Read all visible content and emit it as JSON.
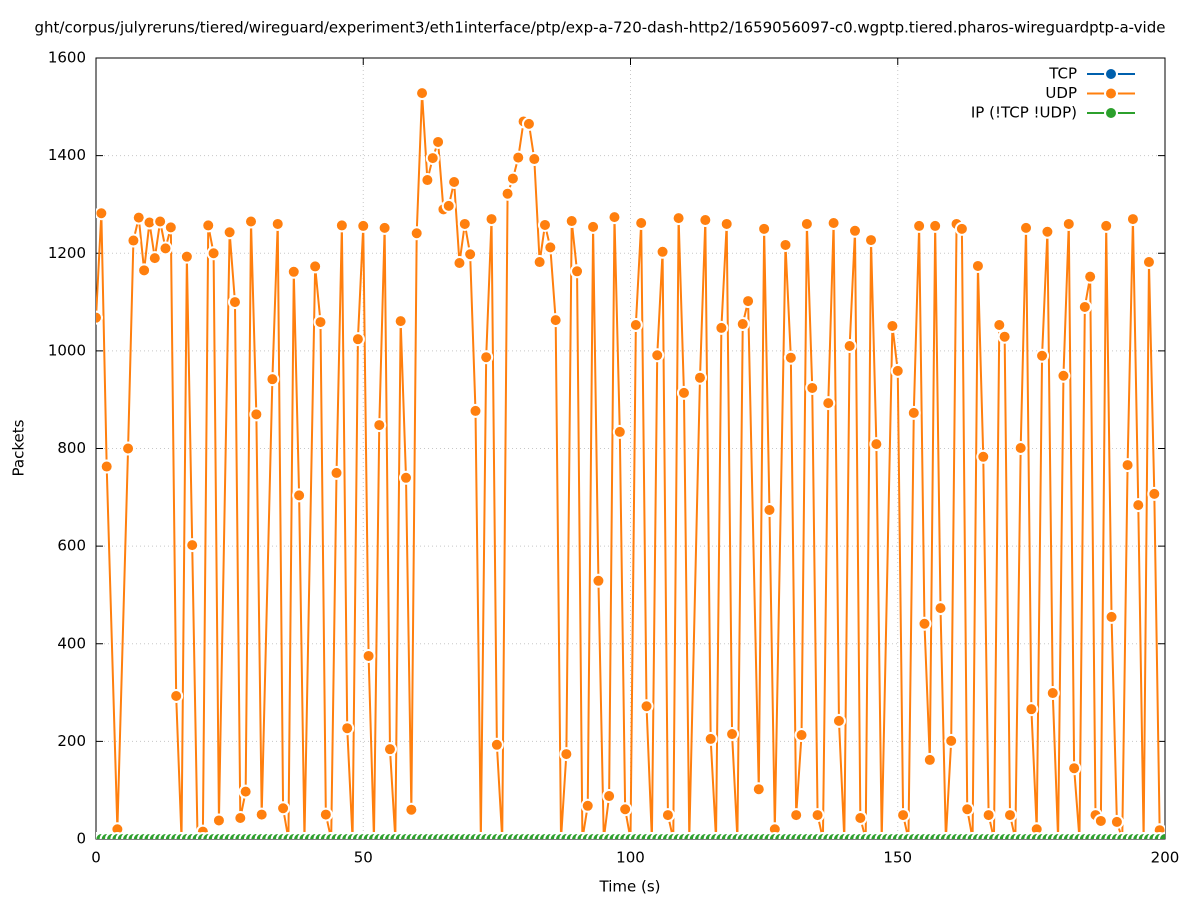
{
  "chart_data": {
    "type": "line",
    "title": "ght/corpus/julyreruns/tiered/wireguard/experiment3/eth1interface/ptp/exp-a-720-dash-http2/1659056097-c0.wgptp.tiered.pharos-wireguardptp-a-vide",
    "x_label": "Time (s)",
    "y_label": "Packets",
    "xlim": [
      0,
      200
    ],
    "xticks": [
      0,
      50,
      100,
      150,
      200
    ],
    "ylim": [
      0,
      1600
    ],
    "yticks": [
      0,
      200,
      400,
      600,
      800,
      1000,
      1200,
      1400,
      1600
    ],
    "grid": true,
    "legend": "top-right",
    "x": [
      0,
      1,
      2,
      3,
      4,
      5,
      6,
      7,
      8,
      9,
      10,
      11,
      12,
      13,
      14,
      15,
      16,
      17,
      18,
      19,
      20,
      21,
      22,
      23,
      24,
      25,
      26,
      27,
      28,
      29,
      30,
      31,
      32,
      33,
      34,
      35,
      36,
      37,
      38,
      39,
      40,
      41,
      42,
      43,
      44,
      45,
      46,
      47,
      48,
      49,
      50,
      51,
      52,
      53,
      54,
      55,
      56,
      57,
      58,
      59,
      60,
      61,
      62,
      63,
      64,
      65,
      66,
      67,
      68,
      69,
      70,
      71,
      72,
      73,
      74,
      75,
      76,
      77,
      78,
      79,
      80,
      81,
      82,
      83,
      84,
      85,
      86,
      87,
      88,
      89,
      90,
      91,
      92,
      93,
      94,
      95,
      96,
      97,
      98,
      99,
      100,
      101,
      102,
      103,
      104,
      105,
      106,
      107,
      108,
      109,
      110,
      111,
      112,
      113,
      114,
      115,
      116,
      117,
      118,
      119,
      120,
      121,
      122,
      123,
      124,
      125,
      126,
      127,
      128,
      129,
      130,
      131,
      132,
      133,
      134,
      135,
      136,
      137,
      138,
      139,
      140,
      141,
      142,
      143,
      144,
      145,
      146,
      147,
      148,
      149,
      150,
      151,
      152,
      153,
      154,
      155,
      156,
      157,
      158,
      159,
      160,
      161,
      162,
      163,
      164,
      165,
      166,
      167,
      168,
      169,
      170,
      171,
      172,
      173,
      174,
      175,
      176,
      177,
      178,
      179,
      180,
      181,
      182,
      183,
      184,
      185,
      186,
      187,
      188,
      189,
      190,
      191,
      192,
      193,
      194,
      195,
      196,
      197,
      198,
      199,
      200
    ],
    "series": [
      {
        "name": "TCP",
        "color": "#0060ad",
        "values": [
          0,
          0,
          0,
          0,
          0,
          0,
          0,
          0,
          0,
          0,
          0,
          0,
          0,
          0,
          0,
          0,
          0,
          0,
          0,
          0,
          0,
          0,
          0,
          0,
          0,
          0,
          0,
          0,
          0,
          0,
          0,
          0,
          0,
          0,
          0,
          0,
          0,
          0,
          0,
          0,
          0,
          0,
          0,
          0,
          0,
          0,
          0,
          0,
          0,
          0,
          0,
          0,
          0,
          0,
          0,
          0,
          0,
          0,
          0,
          0,
          0,
          0,
          0,
          0,
          0,
          0,
          0,
          0,
          0,
          0,
          0,
          0,
          0,
          0,
          0,
          0,
          0,
          0,
          0,
          0,
          0,
          0,
          0,
          0,
          0,
          0,
          0,
          0,
          0,
          0,
          0,
          0,
          0,
          0,
          0,
          0,
          0,
          0,
          0,
          0,
          0,
          0,
          0,
          0,
          0,
          0,
          0,
          0,
          0,
          0,
          0,
          0,
          0,
          0,
          0,
          0,
          0,
          0,
          0,
          0,
          0,
          0,
          0,
          0,
          0,
          0,
          0,
          0,
          0,
          0,
          0,
          0,
          0,
          0,
          0,
          0,
          0,
          0,
          0,
          0,
          0,
          0,
          0,
          0,
          0,
          0,
          0,
          0,
          0,
          0,
          0,
          0,
          0,
          0,
          0,
          0,
          0,
          0,
          0,
          0,
          0,
          0,
          0,
          0,
          0,
          0,
          0,
          0,
          0,
          0,
          0,
          0,
          0,
          0,
          0,
          0,
          0,
          0,
          0,
          0,
          0,
          0,
          0,
          0,
          0,
          0,
          0,
          0,
          0,
          0,
          0,
          0,
          0,
          0,
          0,
          0,
          0,
          0,
          0,
          0,
          0
        ]
      },
      {
        "name": "UDP",
        "color": "#ff7f0e",
        "x": [
          0,
          1,
          2,
          4,
          6,
          7,
          8,
          9,
          10,
          11,
          12,
          13,
          14,
          15,
          16,
          17,
          18,
          19,
          20,
          21,
          22,
          23,
          25,
          26,
          27,
          28,
          29,
          30,
          31,
          33,
          34,
          35,
          36,
          37,
          38,
          39,
          41,
          42,
          43,
          44,
          45,
          46,
          47,
          48,
          49,
          50,
          51,
          52,
          53,
          54,
          55,
          56,
          57,
          58,
          59,
          60,
          61,
          62,
          63,
          64,
          65,
          66,
          67,
          68,
          69,
          70,
          71,
          72,
          73,
          74,
          75,
          76,
          77,
          78,
          79,
          80,
          81,
          82,
          83,
          84,
          85,
          86,
          87,
          88,
          89,
          90,
          91,
          92,
          93,
          94,
          95,
          96,
          97,
          98,
          99,
          100,
          101,
          102,
          103,
          104,
          105,
          106,
          107,
          108,
          109,
          110,
          111,
          113,
          114,
          115,
          116,
          117,
          118,
          119,
          120,
          121,
          122,
          124,
          125,
          126,
          127,
          129,
          130,
          131,
          132,
          133,
          134,
          135,
          136,
          137,
          138,
          139,
          140,
          141,
          142,
          143,
          144,
          145,
          146,
          147,
          149,
          150,
          151,
          152,
          153,
          154,
          155,
          156,
          157,
          158,
          159,
          160,
          161,
          162,
          163,
          164,
          165,
          166,
          167,
          168,
          169,
          170,
          171,
          172,
          173,
          174,
          175,
          176,
          177,
          178,
          179,
          180,
          181,
          182,
          183,
          184,
          185,
          186,
          187,
          188,
          189,
          190,
          191,
          192,
          193,
          194,
          195,
          196,
          197,
          198,
          199
        ],
        "values": [
          1068,
          1282,
          763,
          20,
          800,
          1226,
          1273,
          1165,
          1263,
          1190,
          1265,
          1210,
          1253,
          293,
          0,
          1193,
          602,
          0,
          15,
          1257,
          1200,
          38,
          1243,
          1100,
          43,
          97,
          1265,
          870,
          50,
          942,
          1260,
          63,
          0,
          1162,
          704,
          0,
          1173,
          1059,
          50,
          0,
          750,
          1257,
          227,
          0,
          1024,
          1256,
          375,
          0,
          848,
          1252,
          184,
          0,
          1061,
          740,
          60,
          1241,
          1528,
          1350,
          1395,
          1428,
          1290,
          1297,
          1346,
          1180,
          1260,
          1198,
          877,
          0,
          987,
          1270,
          193,
          0,
          1322,
          1353,
          1396,
          1470,
          1465,
          1393,
          1182,
          1258,
          1212,
          1063,
          0,
          174,
          1266,
          1163,
          0,
          68,
          1254,
          529,
          0,
          88,
          1274,
          834,
          61,
          0,
          1053,
          1262,
          272,
          0,
          991,
          1203,
          49,
          0,
          1272,
          914,
          0,
          945,
          1268,
          205,
          0,
          1047,
          1260,
          215,
          0,
          1055,
          1102,
          102,
          1250,
          674,
          20,
          1217,
          986,
          49,
          213,
          1260,
          924,
          49,
          0,
          893,
          1262,
          242,
          0,
          1010,
          1246,
          43,
          0,
          1227,
          809,
          0,
          1051,
          959,
          49,
          0,
          873,
          1256,
          441,
          162,
          1256,
          473,
          0,
          201,
          1260,
          1250,
          61,
          0,
          1174,
          783,
          49,
          0,
          1053,
          1029,
          49,
          0,
          801,
          1252,
          266,
          20,
          990,
          1244,
          299,
          0,
          949,
          1260,
          145,
          0,
          1090,
          1152,
          49,
          37,
          1256,
          455,
          35,
          0,
          766,
          1270,
          684,
          0,
          1182,
          707,
          18
        ]
      },
      {
        "name": "IP (!TCP  !UDP)",
        "color": "#2ca02c",
        "values": [
          0,
          0,
          0,
          0,
          0,
          0,
          0,
          0,
          0,
          0,
          0,
          0,
          0,
          0,
          0,
          0,
          0,
          0,
          0,
          0,
          0,
          0,
          0,
          0,
          0,
          0,
          0,
          0,
          0,
          0,
          0,
          0,
          0,
          0,
          0,
          0,
          0,
          0,
          0,
          0,
          0,
          0,
          0,
          0,
          0,
          0,
          0,
          0,
          0,
          0,
          0,
          0,
          0,
          0,
          0,
          0,
          0,
          0,
          0,
          0,
          0,
          0,
          0,
          0,
          0,
          0,
          0,
          0,
          0,
          0,
          0,
          0,
          0,
          0,
          0,
          0,
          0,
          0,
          0,
          0,
          0,
          0,
          0,
          0,
          0,
          0,
          0,
          0,
          0,
          0,
          0,
          0,
          0,
          0,
          0,
          0,
          0,
          0,
          0,
          0,
          0,
          0,
          0,
          0,
          0,
          0,
          0,
          0,
          0,
          0,
          0,
          0,
          0,
          0,
          0,
          0,
          0,
          0,
          0,
          0,
          0,
          0,
          0,
          0,
          0,
          0,
          0,
          0,
          0,
          0,
          0,
          0,
          0,
          0,
          0,
          0,
          0,
          0,
          0,
          0,
          0,
          0,
          0,
          0,
          0,
          0,
          0,
          0,
          0,
          0,
          0,
          0,
          0,
          0,
          0,
          0,
          0,
          0,
          0,
          0,
          0,
          0,
          0,
          0,
          0,
          0,
          0,
          0,
          0,
          0,
          0,
          0,
          0,
          0,
          0,
          0,
          0,
          0,
          0,
          0,
          0,
          0,
          0,
          0,
          0,
          0,
          0,
          0,
          0,
          0,
          0,
          0,
          0,
          0,
          0,
          0,
          0,
          0,
          0,
          0,
          0
        ]
      }
    ]
  }
}
